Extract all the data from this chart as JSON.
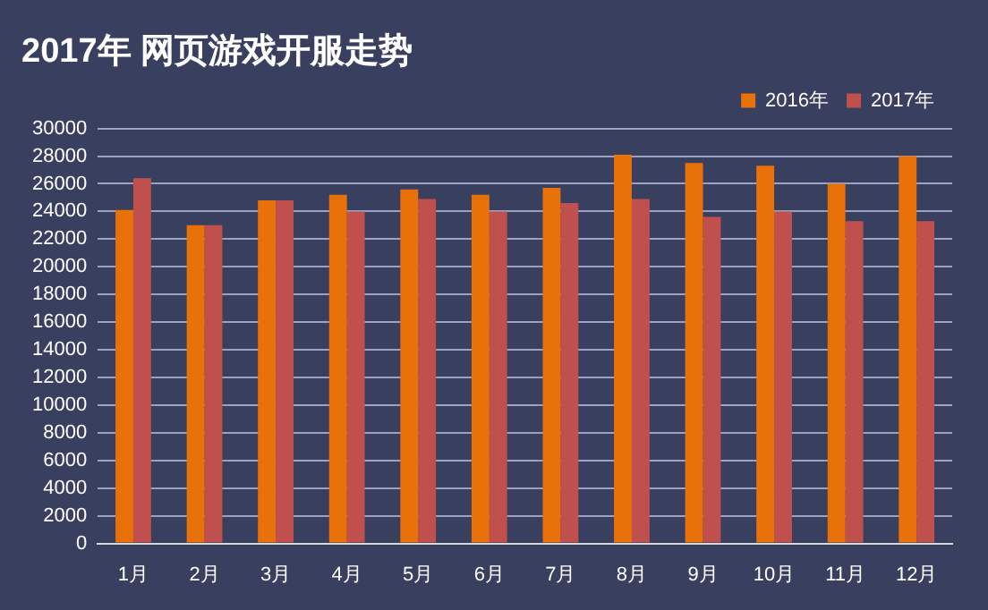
{
  "chart_data": {
    "type": "bar",
    "title": "2017年 网页游戏开服走势",
    "categories": [
      "1月",
      "2月",
      "3月",
      "4月",
      "5月",
      "6月",
      "7月",
      "8月",
      "9月",
      "10月",
      "11月",
      "12月"
    ],
    "series": [
      {
        "name": "2016年",
        "color": "#e8710a",
        "values": [
          24100,
          23000,
          24800,
          25200,
          25600,
          25200,
          25700,
          28100,
          27500,
          27300,
          26000,
          28000
        ]
      },
      {
        "name": "2017年",
        "color": "#c0504d",
        "values": [
          26400,
          23000,
          24800,
          24000,
          24900,
          24000,
          24600,
          24900,
          23600,
          24000,
          23300,
          23300
        ]
      }
    ],
    "ylim": [
      0,
      30000
    ],
    "yticks": [
      0,
      2000,
      4000,
      6000,
      8000,
      10000,
      12000,
      14000,
      16000,
      18000,
      20000,
      22000,
      24000,
      26000,
      28000,
      30000
    ],
    "grid": "y",
    "legend": "top right"
  }
}
